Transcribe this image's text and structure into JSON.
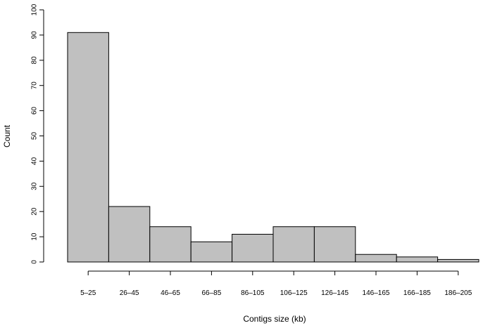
{
  "chart_data": {
    "type": "bar",
    "categories": [
      "5–25",
      "26–45",
      "46–65",
      "66–85",
      "86–105",
      "106–125",
      "126–145",
      "146–165",
      "166–185",
      "186–205"
    ],
    "values": [
      91,
      22,
      14,
      8,
      11,
      14,
      14,
      3,
      2,
      1
    ],
    "xlabel": "Contigs size (kb)",
    "ylabel": "Count",
    "ylim": [
      0,
      100
    ],
    "yticks": [
      0,
      10,
      20,
      30,
      40,
      50,
      60,
      70,
      80,
      90,
      100
    ],
    "bar_color": "#c0c0c0",
    "grid": false
  }
}
